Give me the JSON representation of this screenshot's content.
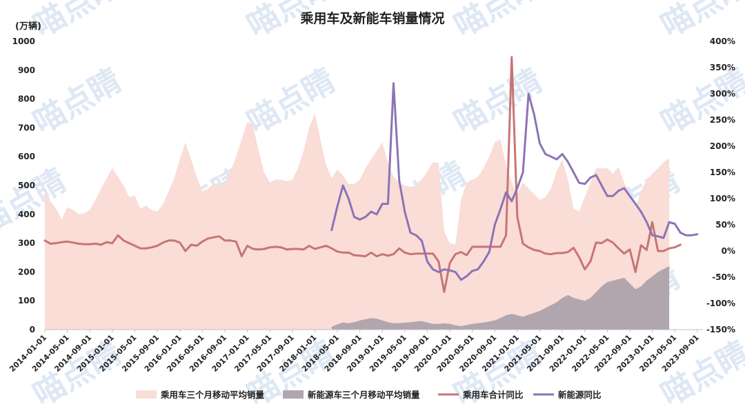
{
  "chart_data": {
    "type": "area",
    "title": "乘用车及新能车销量情况",
    "y_unit_label": "(万辆)",
    "ylim": [
      0,
      1000
    ],
    "y_ticks": [
      "0",
      "100",
      "200",
      "300",
      "400",
      "500",
      "600",
      "700",
      "800",
      "900",
      "1000"
    ],
    "y2lim": [
      -150,
      400
    ],
    "y2_ticks": [
      "-150%",
      "-100%",
      "-50%",
      "0%",
      "50%",
      "100%",
      "150%",
      "200%",
      "250%",
      "300%",
      "350%",
      "400%"
    ],
    "x_tick_labels": [
      "2014-01-01",
      "2014-05-01",
      "2014-09-01",
      "2015-01-01",
      "2015-05-01",
      "2015-09-01",
      "2016-01-01",
      "2016-05-01",
      "2016-09-01",
      "2017-01-01",
      "2017-05-01",
      "2017-09-01",
      "2018-01-01",
      "2018-05-01",
      "2018-09-01",
      "2019-01-01",
      "2019-05-01",
      "2019-09-01",
      "2020-01-01",
      "2020-05-01",
      "2020-09-01",
      "2021-01-01",
      "2021-05-01",
      "2021-09-01",
      "2022-01-01",
      "2022-05-01",
      "2022-09-01",
      "2023-01-01",
      "2023-05-01",
      "2023-09-01"
    ],
    "x_start": "2014-01",
    "x_end": "2023-10",
    "grid": false,
    "legend_position": "bottom",
    "colors": {
      "pv_area": "#f9ddd6",
      "nev_area": "#b2a6ae",
      "pv_yoy_line": "#c77474",
      "nev_yoy_line": "#8a73b5",
      "watermark": "#a9c4e6"
    },
    "series": [
      {
        "name": "乘用车三个月移动平均销量",
        "kind": "area",
        "axis": "left",
        "start": "2014-01",
        "values": [
          490,
          445,
          420,
          382,
          425,
          415,
          400,
          405,
          415,
          450,
          490,
          525,
          560,
          530,
          500,
          460,
          465,
          420,
          430,
          415,
          410,
          435,
          480,
          525,
          590,
          650,
          590,
          530,
          480,
          490,
          505,
          500,
          510,
          550,
          600,
          660,
          720,
          710,
          620,
          545,
          510,
          520,
          520,
          515,
          520,
          560,
          620,
          700,
          750,
          660,
          570,
          525,
          555,
          535,
          505,
          505,
          520,
          560,
          590,
          620,
          650,
          580,
          530,
          510,
          500,
          495,
          500,
          520,
          550,
          580,
          580,
          340,
          300,
          295,
          450,
          510,
          520,
          530,
          560,
          600,
          650,
          660,
          570,
          510,
          470,
          510,
          490,
          470,
          450,
          460,
          490,
          550,
          590,
          520,
          420,
          410,
          460,
          510,
          560,
          560,
          560,
          540,
          565,
          510,
          470,
          420,
          480,
          520,
          540,
          560,
          580,
          595
        ]
      },
      {
        "name": "新能源车三个月移动平均销量",
        "kind": "area",
        "axis": "left",
        "start": "2018-04",
        "values": [
          10,
          18,
          25,
          22,
          26,
          32,
          36,
          40,
          38,
          32,
          26,
          22,
          23,
          24,
          26,
          28,
          30,
          25,
          20,
          20,
          22,
          20,
          15,
          12,
          16,
          20,
          22,
          25,
          28,
          32,
          40,
          50,
          55,
          50,
          45,
          52,
          58,
          65,
          75,
          85,
          95,
          110,
          120,
          110,
          105,
          100,
          110,
          130,
          150,
          165,
          170,
          175,
          180,
          160,
          140,
          150,
          170,
          185,
          200,
          210,
          220
        ]
      },
      {
        "name": "乘用车合计同比",
        "kind": "line",
        "axis": "right",
        "start": "2014-01",
        "values": [
          20,
          14,
          15,
          17,
          18,
          16,
          14,
          13,
          13,
          14,
          12,
          17,
          15,
          30,
          20,
          15,
          10,
          5,
          5,
          7,
          10,
          16,
          20,
          20,
          16,
          0,
          12,
          10,
          18,
          24,
          26,
          28,
          20,
          20,
          18,
          -10,
          10,
          4,
          3,
          4,
          7,
          8,
          7,
          3,
          4,
          4,
          3,
          10,
          4,
          7,
          10,
          5,
          -1,
          -3,
          -3,
          -8,
          -9,
          -10,
          -3,
          -10,
          -6,
          -9,
          -6,
          5,
          -3,
          -6,
          -5,
          -5,
          -5,
          -5,
          -20,
          -78,
          -23,
          -6,
          -2,
          -8,
          8,
          8,
          8,
          8,
          8,
          8,
          30,
          370,
          65,
          14,
          7,
          2,
          0,
          -5,
          -6,
          -4,
          -4,
          -2,
          6,
          -12,
          -35,
          -20,
          16,
          15,
          22,
          16,
          5,
          -5,
          3,
          -40,
          11,
          2,
          55,
          0,
          0,
          5,
          7,
          12
        ]
      },
      {
        "name": "新能源同比",
        "kind": "line",
        "axis": "right",
        "start": "2018-04",
        "values": [
          40,
          85,
          125,
          100,
          65,
          60,
          65,
          75,
          70,
          90,
          90,
          320,
          135,
          75,
          35,
          30,
          20,
          -20,
          -35,
          -40,
          -35,
          -37,
          -40,
          -55,
          -48,
          -38,
          -35,
          -20,
          -2,
          50,
          80,
          112,
          95,
          120,
          150,
          300,
          260,
          205,
          185,
          180,
          175,
          185,
          170,
          150,
          130,
          128,
          140,
          145,
          125,
          105,
          105,
          115,
          120,
          105,
          90,
          75,
          55,
          30,
          28,
          25,
          55,
          52,
          35,
          30,
          30,
          32
        ]
      }
    ]
  },
  "watermark_text": "喵点睛"
}
